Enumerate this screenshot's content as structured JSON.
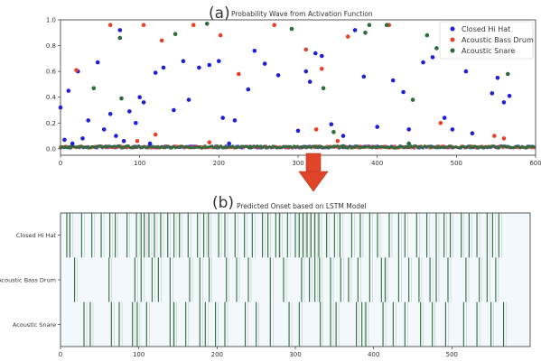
{
  "chart_data": [
    {
      "type": "scatter",
      "panel_label": "(a)",
      "title": "Probability Wave from Activation Function",
      "xlim": [
        0,
        600
      ],
      "ylim": [
        -0.05,
        1.0
      ],
      "x_ticks": [
        0,
        100,
        200,
        300,
        400,
        500,
        600
      ],
      "y_ticks": [
        0.0,
        0.2,
        0.4,
        0.6,
        0.8,
        1.0
      ],
      "x_tick_labels": [
        "0",
        "100",
        "200",
        "300",
        "400",
        "500",
        "600"
      ],
      "y_tick_labels": [
        "0.0",
        "0.2",
        "0.4",
        "0.6",
        "0.8",
        "1.0"
      ],
      "legend_position": "top-right",
      "series": [
        {
          "name": "Closed Hi Hat",
          "color": "#1f1fd6",
          "x": [
            0,
            5,
            10,
            15,
            22,
            28,
            35,
            47,
            55,
            63,
            70,
            75,
            80,
            87,
            95,
            100,
            105,
            113,
            120,
            130,
            143,
            155,
            162,
            175,
            188,
            200,
            205,
            213,
            220,
            237,
            245,
            258,
            275,
            300,
            310,
            315,
            322,
            330,
            342,
            357,
            372,
            383,
            400,
            420,
            433,
            440,
            458,
            470,
            485,
            495,
            512,
            520,
            530,
            545,
            552,
            560,
            567
          ],
          "y": [
            0.32,
            0.07,
            0.45,
            0.04,
            0.6,
            0.08,
            0.22,
            0.67,
            0.15,
            0.27,
            0.1,
            0.92,
            0.06,
            0.29,
            0.2,
            0.4,
            0.36,
            0.04,
            0.59,
            0.63,
            0.3,
            0.68,
            0.38,
            0.63,
            0.65,
            0.68,
            0.24,
            0.04,
            0.22,
            0.46,
            0.76,
            0.66,
            0.57,
            0.14,
            0.6,
            0.52,
            0.74,
            0.72,
            0.19,
            0.1,
            0.92,
            0.56,
            0.17,
            0.53,
            0.44,
            0.15,
            0.67,
            0.71,
            0.24,
            0.15,
            0.6,
            0.12,
            0.76,
            0.43,
            0.55,
            0.36,
            0.41
          ]
        },
        {
          "name": "Acoustic Bass Drum",
          "color": "#e8412b",
          "x": [
            20,
            63,
            97,
            105,
            120,
            128,
            168,
            188,
            202,
            225,
            270,
            310,
            323,
            330,
            350,
            363,
            415,
            480,
            522,
            548,
            560
          ],
          "y": [
            0.61,
            0.96,
            0.06,
            0.96,
            0.11,
            0.84,
            0.96,
            0.05,
            0.88,
            0.58,
            0.96,
            0.77,
            0.15,
            0.62,
            0.06,
            0.87,
            0.96,
            0.2,
            0.9,
            0.1,
            0.08
          ]
        },
        {
          "name": "Acoustic Snare",
          "color": "#2e6b3c",
          "x": [
            12,
            42,
            75,
            77,
            145,
            185,
            240,
            292,
            332,
            345,
            357,
            385,
            390,
            412,
            440,
            445,
            463,
            475,
            565
          ],
          "y": [
            0.01,
            0.47,
            0.86,
            0.39,
            0.89,
            0.97,
            0.01,
            0.93,
            0.47,
            0.13,
            0.02,
            0.9,
            0.96,
            0.96,
            0.04,
            0.38,
            0.88,
            0.78,
            0.58
          ]
        }
      ]
    },
    {
      "type": "heatmap",
      "panel_label": "(b)",
      "title": "Predicted Onset based on LSTM Model",
      "xlim": [
        0,
        600
      ],
      "x_ticks": [
        0,
        100,
        200,
        300,
        400,
        500
      ],
      "x_tick_labels": [
        "0",
        "100",
        "200",
        "300",
        "400",
        "500"
      ],
      "rows": [
        "Closed Hi Hat",
        "Acoustic Bass Drum",
        "Acoustic Snare"
      ],
      "onsets": [
        [
          8,
          12,
          27,
          40,
          52,
          63,
          70,
          85,
          97,
          103,
          107,
          113,
          120,
          128,
          137,
          145,
          152,
          163,
          175,
          183,
          189,
          202,
          210,
          223,
          235,
          245,
          258,
          265,
          275,
          280,
          290,
          300,
          305,
          310,
          315,
          320,
          325,
          330,
          340,
          350,
          357,
          372,
          383,
          395,
          405,
          420,
          432,
          440,
          455,
          468,
          480,
          490,
          498,
          512,
          522,
          532,
          545,
          552,
          560
        ],
        [
          18,
          62,
          95,
          103,
          117,
          125,
          140,
          165,
          178,
          190,
          212,
          225,
          240,
          268,
          285,
          308,
          318,
          325,
          331,
          345,
          358,
          368,
          380,
          395,
          410,
          415,
          432,
          445,
          458,
          472,
          480,
          495,
          518,
          535,
          545,
          556
        ],
        [
          30,
          38,
          65,
          75,
          92,
          98,
          110,
          140,
          145,
          160,
          178,
          185,
          198,
          210,
          236,
          250,
          268,
          292,
          305,
          332,
          345,
          352,
          378,
          385,
          390,
          412,
          425,
          440,
          460,
          475,
          492,
          515,
          532,
          550,
          566
        ]
      ],
      "colors": {
        "background": "#f3f8fc",
        "onset": "#2e6b3c"
      }
    }
  ],
  "arrow_color": "#e0452a"
}
